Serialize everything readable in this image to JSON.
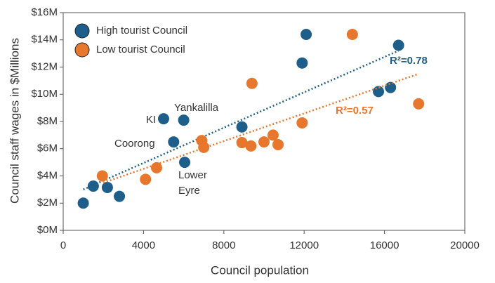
{
  "chart_data": {
    "type": "scatter",
    "xlabel": "Council population",
    "ylabel": "Council staff wages in $Millions",
    "xlim": [
      0,
      20000
    ],
    "xticks": [
      0,
      4000,
      8000,
      12000,
      16000,
      20000
    ],
    "ylim": [
      0,
      16
    ],
    "yticks": [
      {
        "value": 0,
        "label": "$0M"
      },
      {
        "value": 2,
        "label": "$2M"
      },
      {
        "value": 4,
        "label": "$4M"
      },
      {
        "value": 6,
        "label": "$6M"
      },
      {
        "value": 8,
        "label": "$8M"
      },
      {
        "value": 10,
        "label": "$10M"
      },
      {
        "value": 12,
        "label": "$12M"
      },
      {
        "value": 14,
        "label": "$14M"
      },
      {
        "value": 16,
        "label": "$16M"
      }
    ],
    "legend": "upper left",
    "series": [
      {
        "name": "High tourist Council",
        "color": "#1d5f8a",
        "x": [
          1000,
          1500,
          2200,
          2800,
          5000,
          6000,
          5500,
          6050,
          8900,
          11900,
          12100,
          15700,
          16300,
          16700
        ],
        "values": [
          2.0,
          3.25,
          3.15,
          2.5,
          8.2,
          8.1,
          6.5,
          5.0,
          7.6,
          12.3,
          14.4,
          10.2,
          10.5,
          13.6
        ],
        "trend": {
          "x": [
            1000,
            16700
          ],
          "values": [
            3.0,
            13.2
          ],
          "label": "R²=0.78"
        }
      },
      {
        "name": "Low tourist Council",
        "color": "#e8772e",
        "x": [
          1950,
          4100,
          4650,
          6900,
          7000,
          8900,
          9350,
          9400,
          10000,
          10450,
          10700,
          11900,
          14400,
          17700
        ],
        "values": [
          4.0,
          3.75,
          4.6,
          6.6,
          6.1,
          6.45,
          6.2,
          10.8,
          6.5,
          7.0,
          6.3,
          7.9,
          14.4,
          9.3
        ],
        "trend": {
          "x": [
            2000,
            17700
          ],
          "values": [
            3.5,
            11.5
          ],
          "label": "R²=0.57"
        }
      }
    ],
    "annotations": [
      "KI",
      "Yankalilla",
      "Coorong",
      "Lower",
      "Eyre"
    ]
  }
}
